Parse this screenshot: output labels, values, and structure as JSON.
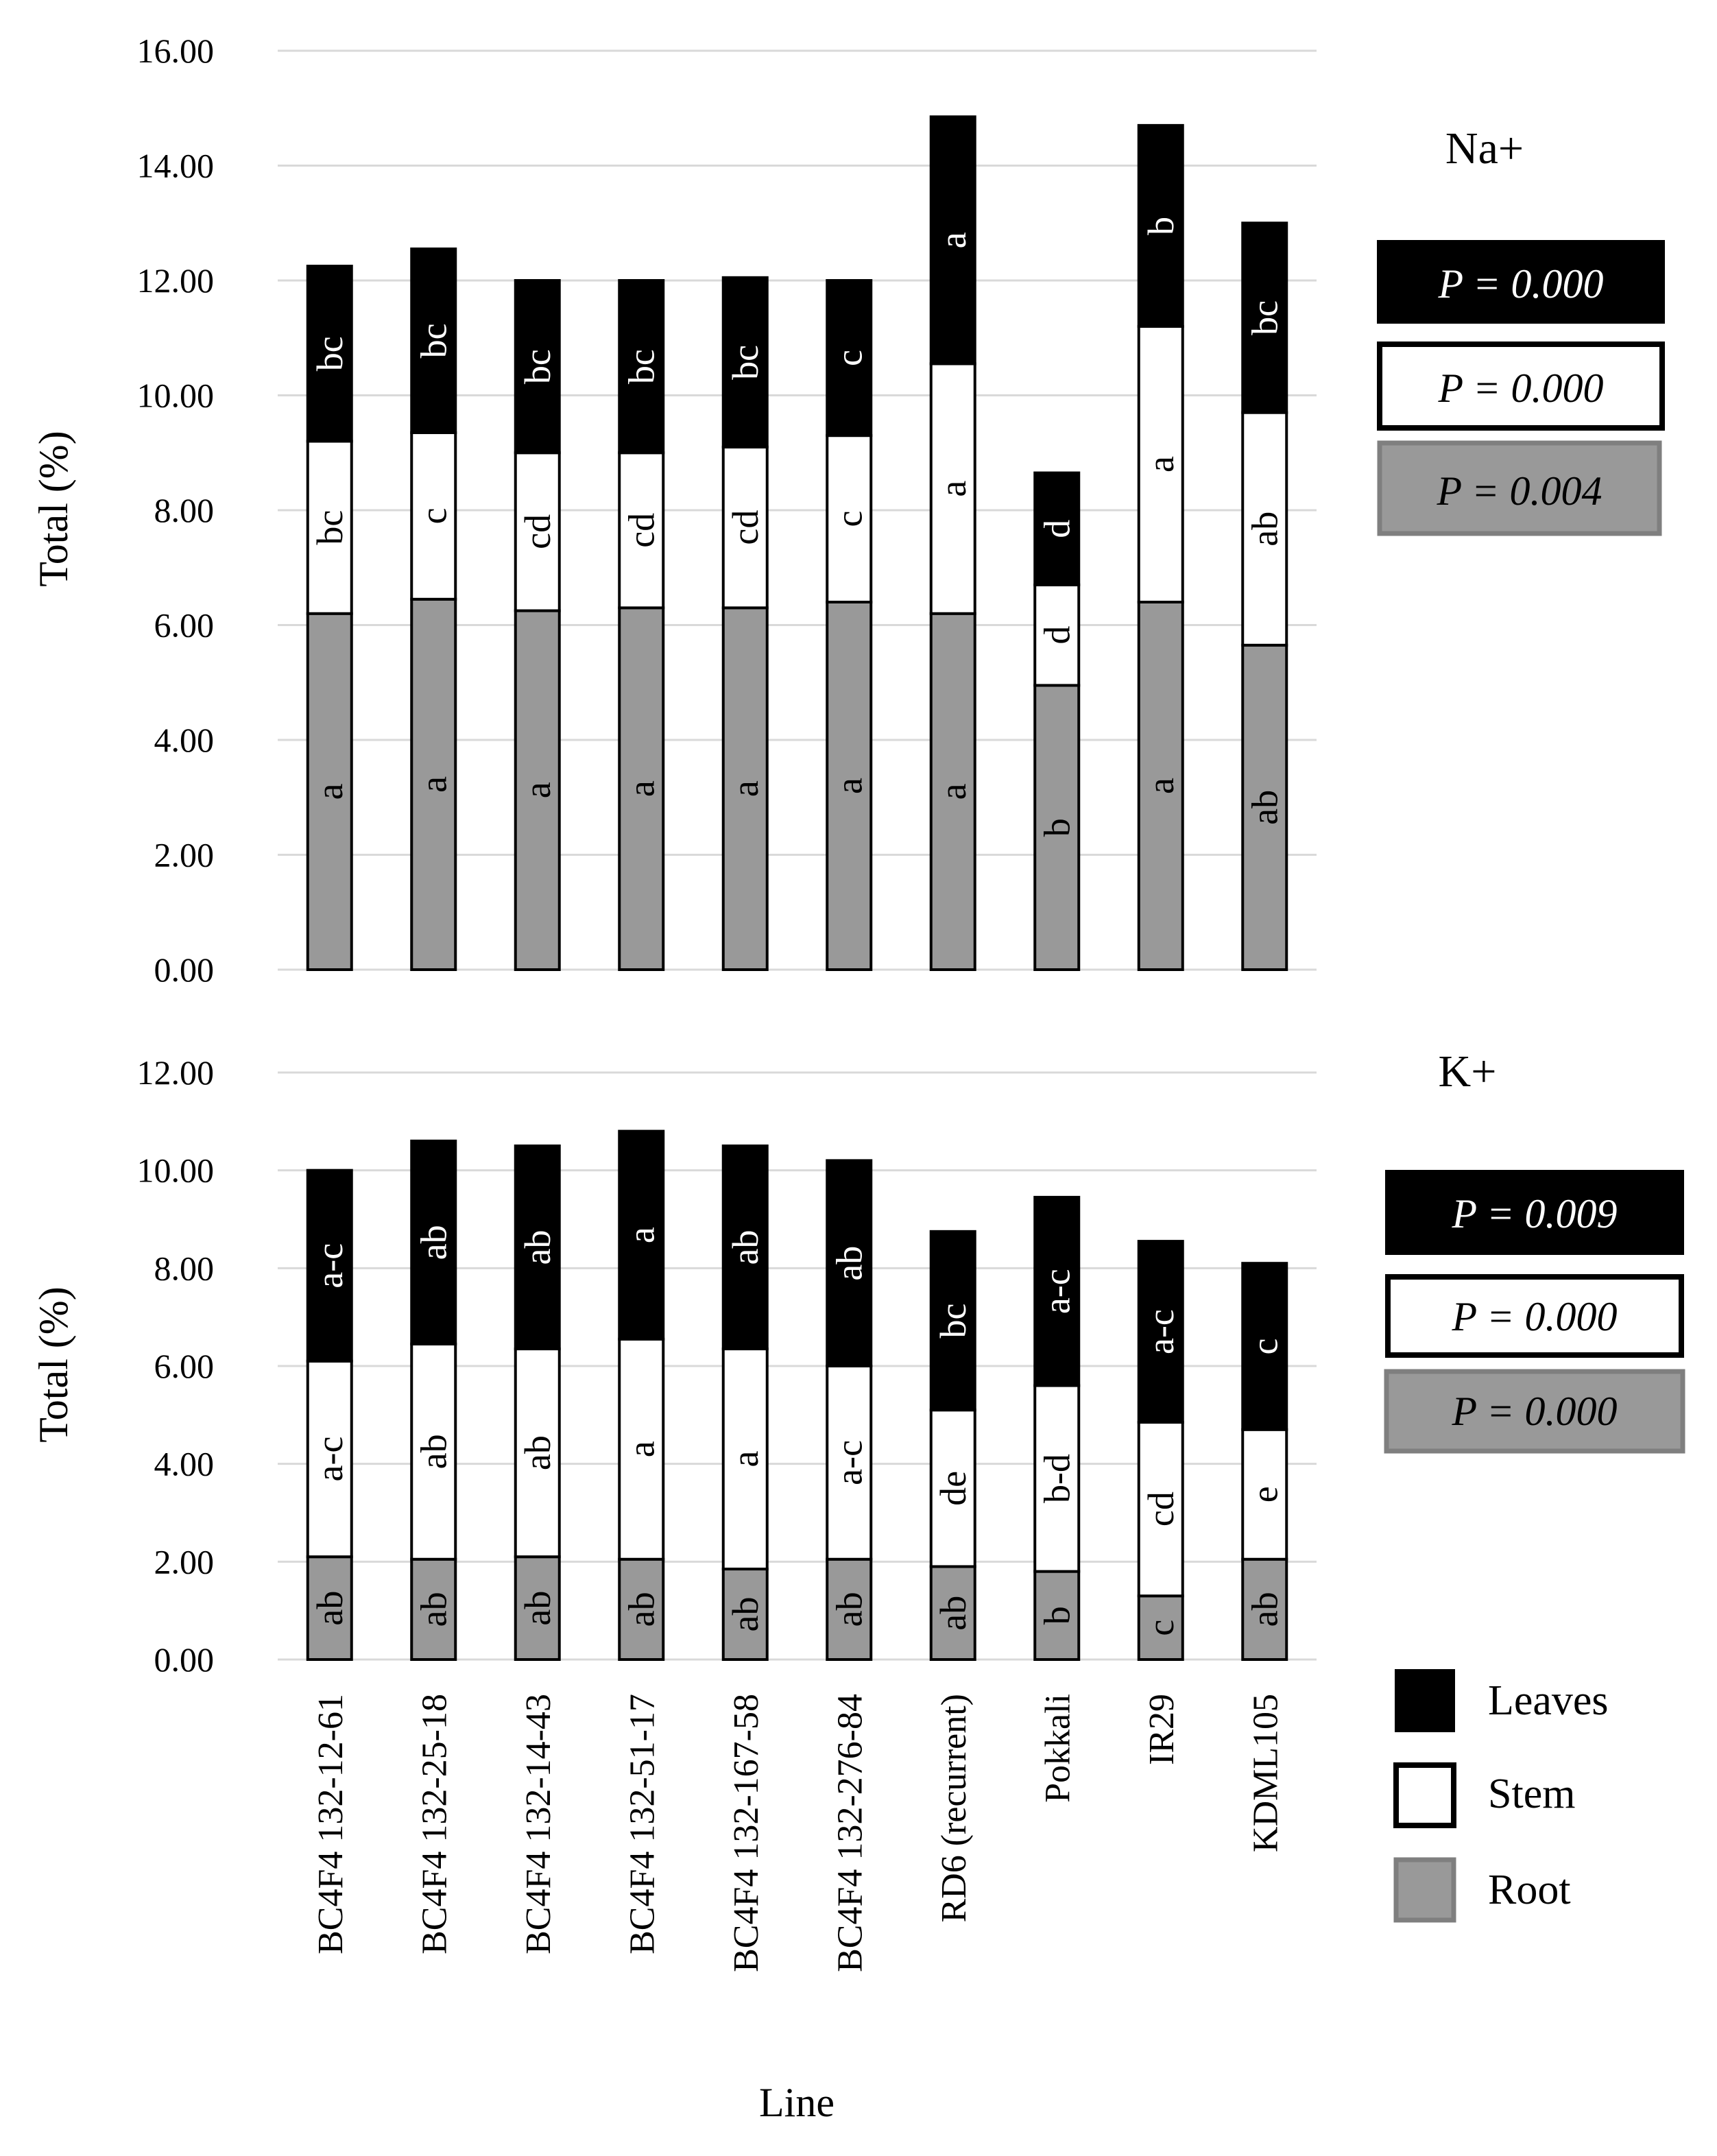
{
  "colors": {
    "leaves": "#000000",
    "stem": "#ffffff",
    "root": "#999999",
    "grid": "#d9d9d9",
    "outline": "#000000",
    "root_box_border": "#7f7f7f"
  },
  "chart_data": [
    {
      "type": "bar",
      "stacked": true,
      "title": "Na+",
      "ylabel": "Total (%)",
      "xlabel": "",
      "ylim": [
        0,
        16
      ],
      "yticks": [
        "0.00",
        "2.00",
        "4.00",
        "6.00",
        "8.00",
        "10.00",
        "12.00",
        "14.00",
        "16.00"
      ],
      "grid": true,
      "categories": [
        "BC4F4 132-12-61",
        "BC4F4 132-25-18",
        "BC4F4 132-14-43",
        "BC4F4 132-51-17",
        "BC4F4 132-167-58",
        "BC4F4 132-276-84",
        "RD6 (recurrent)",
        "Pokkali",
        "IR29",
        "KDML105"
      ],
      "series": [
        {
          "name": "Root",
          "values": [
            6.2,
            6.45,
            6.25,
            6.3,
            6.3,
            6.4,
            6.2,
            4.95,
            6.4,
            5.65
          ],
          "letters": [
            "a",
            "a",
            "a",
            "a",
            "a",
            "a",
            "a",
            "b",
            "a",
            "ab"
          ]
        },
        {
          "name": "Stem",
          "values": [
            3.0,
            2.9,
            2.75,
            2.7,
            2.8,
            2.9,
            4.35,
            1.75,
            4.8,
            4.05
          ],
          "letters": [
            "bc",
            "c",
            "cd",
            "cd",
            "cd",
            "c",
            "a",
            "d",
            "a",
            "ab"
          ]
        },
        {
          "name": "Leaves",
          "values": [
            3.05,
            3.2,
            3.0,
            3.0,
            2.95,
            2.7,
            4.3,
            1.95,
            3.5,
            3.3
          ],
          "letters": [
            "bc",
            "bc",
            "bc",
            "bc",
            "bc",
            "c",
            "a",
            "d",
            "b",
            "bc"
          ]
        }
      ],
      "p_values": {
        "leaves": "P = 0.000",
        "stem": "P = 0.000",
        "root": "P = 0.004"
      }
    },
    {
      "type": "bar",
      "stacked": true,
      "title": "K+",
      "ylabel": "Total (%)",
      "xlabel": "Line",
      "ylim": [
        0,
        12
      ],
      "yticks": [
        "0.00",
        "2.00",
        "4.00",
        "6.00",
        "8.00",
        "10.00",
        "12.00"
      ],
      "grid": true,
      "categories": [
        "BC4F4 132-12-61",
        "BC4F4 132-25-18",
        "BC4F4 132-14-43",
        "BC4F4 132-51-17",
        "BC4F4 132-167-58",
        "BC4F4 132-276-84",
        "RD6 (recurrent)",
        "Pokkali",
        "IR29",
        "KDML105"
      ],
      "series": [
        {
          "name": "Root",
          "values": [
            2.1,
            2.05,
            2.1,
            2.05,
            1.85,
            2.05,
            1.9,
            1.8,
            1.3,
            2.05
          ],
          "letters": [
            "ab",
            "ab",
            "ab",
            "ab",
            "ab",
            "ab",
            "ab",
            "b",
            "c",
            "ab"
          ]
        },
        {
          "name": "Stem",
          "values": [
            4.0,
            4.4,
            4.25,
            4.5,
            4.5,
            3.95,
            3.2,
            3.8,
            3.55,
            2.65
          ],
          "letters": [
            "a-c",
            "ab",
            "ab",
            "a",
            "a",
            "a-c",
            "de",
            "b-d",
            "cd",
            "e"
          ]
        },
        {
          "name": "Leaves",
          "values": [
            3.9,
            4.15,
            4.15,
            4.25,
            4.15,
            4.2,
            3.65,
            3.85,
            3.7,
            3.4
          ],
          "letters": [
            "a-c",
            "ab",
            "ab",
            "a",
            "ab",
            "ab",
            "bc",
            "a-c",
            "a-c",
            "c"
          ]
        }
      ],
      "p_values": {
        "leaves": "P = 0.009",
        "stem": "P = 0.000",
        "root": "P = 0.000"
      }
    }
  ],
  "legend": {
    "items": [
      "Leaves",
      "Stem",
      "Root"
    ]
  }
}
